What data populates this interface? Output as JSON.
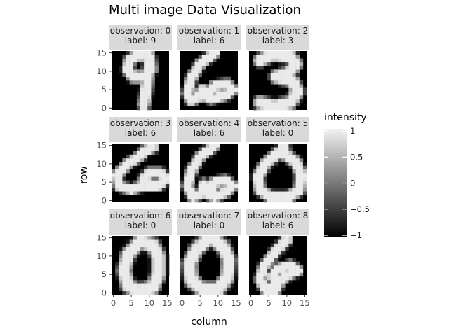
{
  "chart_data": {
    "type": "heatmap",
    "title": "Multi image Data Visualization",
    "xlabel": "column",
    "ylabel": "row",
    "xlim": [
      0,
      15
    ],
    "ylim": [
      0,
      15
    ],
    "x_ticks": [
      "0",
      "5",
      "10",
      "15"
    ],
    "y_ticks": [
      "0",
      "5",
      "10",
      "15"
    ],
    "grid_size": [
      16,
      16
    ],
    "facet_layout": [
      3,
      3
    ],
    "legend": {
      "title": "intensity",
      "range": [
        -1,
        1
      ],
      "ticks": [
        "1",
        "0.5",
        "0",
        "−0.5",
        "−1"
      ],
      "tick_values": [
        1,
        0.5,
        0,
        -0.5,
        -1
      ],
      "colors": {
        "low": "#000000",
        "high": "#f2f2f2"
      },
      "placement": "right"
    },
    "panels": [
      {
        "observation_text": "observation: 0",
        "label_text": "label: 9",
        "digit": "9"
      },
      {
        "observation_text": "observation: 1",
        "label_text": "label: 6",
        "digit": "6a"
      },
      {
        "observation_text": "observation: 2",
        "label_text": "label: 3",
        "digit": "3"
      },
      {
        "observation_text": "observation: 3",
        "label_text": "label: 6",
        "digit": "6b"
      },
      {
        "observation_text": "observation: 4",
        "label_text": "label: 6",
        "digit": "6c"
      },
      {
        "observation_text": "observation: 5",
        "label_text": "label: 0",
        "digit": "0a"
      },
      {
        "observation_text": "observation: 6",
        "label_text": "label: 0",
        "digit": "0b"
      },
      {
        "observation_text": "observation: 7",
        "label_text": "label: 0",
        "digit": "0c"
      },
      {
        "observation_text": "observation: 8",
        "label_text": "label: 6",
        "digit": "6d"
      }
    ]
  }
}
